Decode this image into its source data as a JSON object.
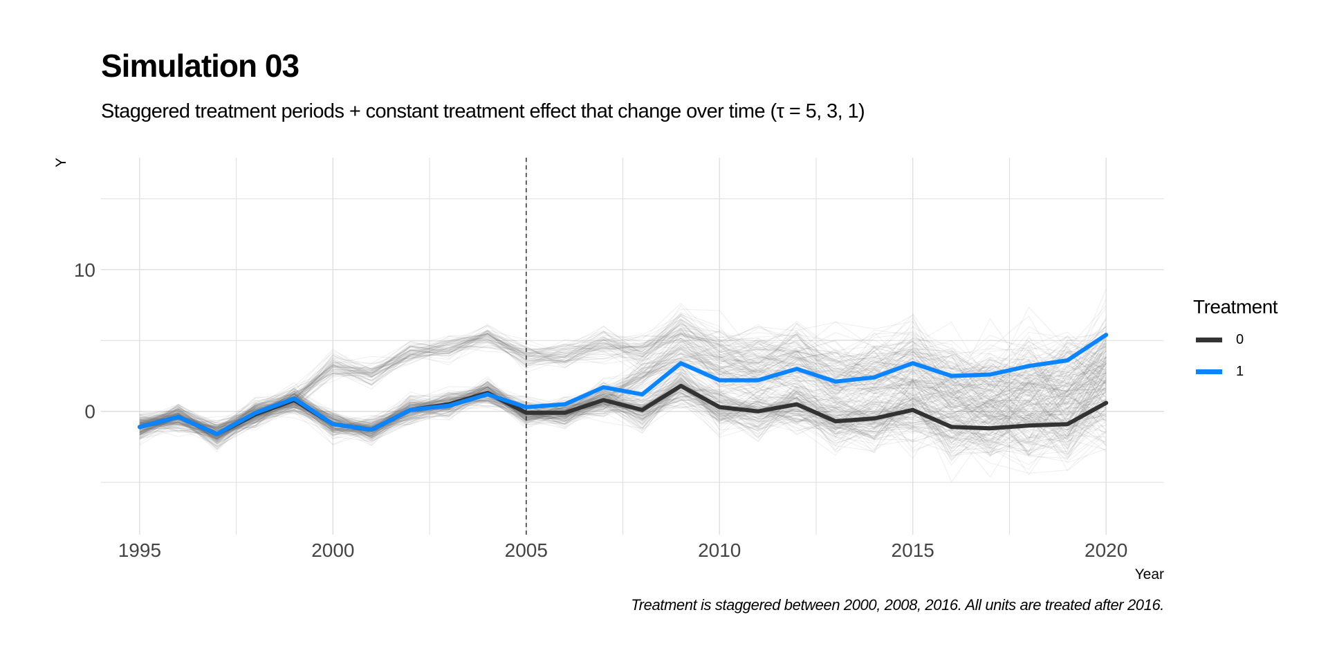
{
  "title": "Simulation 03",
  "subtitle": "Staggered treatment periods + constant treatment effect that change over time (τ = 5, 3, 1)",
  "caption": "Treatment is staggered between 2000, 2008, 2016. All units are treated after 2016.",
  "chart_data": {
    "type": "line",
    "title": "Simulation 03",
    "xlabel": "Year",
    "ylabel": "Y",
    "xlim": [
      1994,
      2021.5
    ],
    "ylim": [
      -8.7,
      17.9
    ],
    "x_ticks": [
      1995,
      2000,
      2005,
      2010,
      2015,
      2020
    ],
    "y_ticks": [
      0,
      10
    ],
    "grid": true,
    "vline": {
      "x": 2005,
      "style": "dashed"
    },
    "legend": {
      "title": "Treatment",
      "position": "right"
    },
    "x": [
      1995,
      1996,
      1997,
      1998,
      1999,
      2000,
      2001,
      2002,
      2003,
      2004,
      2005,
      2006,
      2007,
      2008,
      2009,
      2010,
      2011,
      2012,
      2013,
      2014,
      2015,
      2016,
      2017,
      2018,
      2019,
      2020
    ],
    "series": [
      {
        "name": "0",
        "color": "#333333",
        "values": [
          -1.1,
          -0.4,
          -1.6,
          -0.2,
          0.8,
          -0.9,
          -1.3,
          0.1,
          0.5,
          1.3,
          -0.1,
          -0.1,
          0.8,
          0.1,
          1.8,
          0.3,
          0.0,
          0.5,
          -0.7,
          -0.5,
          0.1,
          -1.1,
          -1.2,
          -1.0,
          -0.9,
          0.6
        ]
      },
      {
        "name": "1",
        "color": "#0A84FF",
        "values": [
          -1.1,
          -0.4,
          -1.6,
          -0.1,
          0.9,
          -0.9,
          -1.3,
          0.1,
          0.4,
          1.2,
          0.3,
          0.5,
          1.7,
          1.2,
          3.4,
          2.2,
          2.2,
          3.0,
          2.1,
          2.4,
          3.4,
          2.5,
          2.6,
          3.2,
          3.6,
          5.4
        ]
      }
    ]
  }
}
